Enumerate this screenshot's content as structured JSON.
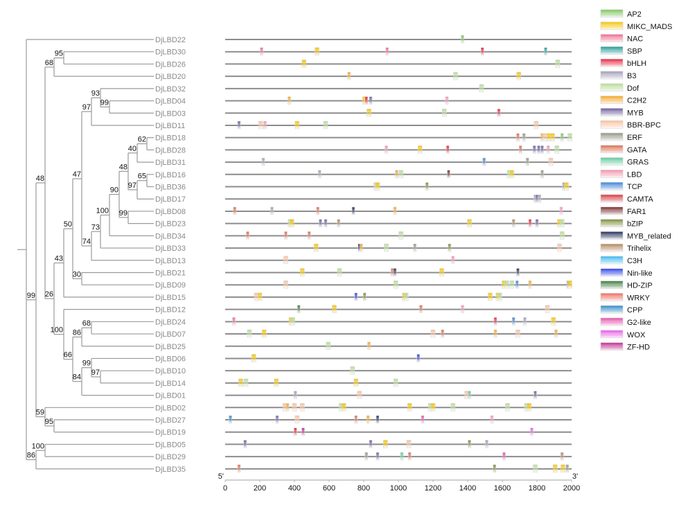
{
  "colors": {
    "AP2": "#7cc35a",
    "MIKC_MADS": "#f5c400",
    "NAC": "#f0698a",
    "SBP": "#1e9a96",
    "bHLH": "#e8203a",
    "B3": "#a09ab8",
    "Dof": "#b6dc94",
    "C2H2": "#f5a623",
    "MYB": "#6b5a9e",
    "BBR-BPC": "#f9c09a",
    "ERF": "#8e9480",
    "GATA": "#dc6a4a",
    "GRAS": "#5cc99a",
    "LBD": "#f490ac",
    "TCP": "#3a7fd6",
    "CAMTA": "#d8343a",
    "FAR1": "#7a2a2a",
    "bZIP": "#7a8c34",
    "MYB_related": "#1e2a54",
    "Trihelix": "#b08458",
    "C3H": "#34b8f0",
    "Nin-like": "#2a3ee8",
    "HD-ZIP": "#3a7a3a",
    "WRKY": "#f06a5a",
    "CPP": "#2a88c8",
    "G2-like": "#e84aaa",
    "WOX": "#e65ae8",
    "ZF-HD": "#c02890"
  },
  "legend": [
    "AP2",
    "MIKC_MADS",
    "NAC",
    "SBP",
    "bHLH",
    "B3",
    "Dof",
    "C2H2",
    "MYB",
    "BBR-BPC",
    "ERF",
    "GATA",
    "GRAS",
    "LBD",
    "TCP",
    "CAMTA",
    "FAR1",
    "bZIP",
    "MYB_related",
    "Trihelix",
    "C3H",
    "Nin-like",
    "HD-ZIP",
    "WRKY",
    "CPP",
    "G2-like",
    "WOX",
    "ZF-HD"
  ],
  "axis": {
    "start_label": "5'",
    "end_label": "3'",
    "min": 0,
    "max": 2000,
    "ticks": [
      "0",
      "200",
      "400",
      "600",
      "800",
      "1000",
      "1200",
      "1400",
      "1600",
      "1800",
      "2000"
    ]
  },
  "genes": [
    {
      "name": "DjLBD22",
      "sites": [
        [
          "AP2",
          1370
        ]
      ]
    },
    {
      "name": "DjLBD30",
      "sites": [
        [
          "NAC",
          210
        ],
        [
          "MIKC_MADS",
          530
        ],
        [
          "NAC",
          935
        ],
        [
          "bHLH",
          1485
        ],
        [
          "SBP",
          1850
        ]
      ]
    },
    {
      "name": "DjLBD26",
      "sites": [
        [
          "MIKC_MADS",
          455
        ],
        [
          "Dof",
          1920
        ]
      ]
    },
    {
      "name": "DjLBD20",
      "sites": [
        [
          "C2H2",
          715
        ],
        [
          "Dof",
          1330
        ],
        [
          "MIKC_MADS",
          1695
        ]
      ]
    },
    {
      "name": "DjLBD32",
      "sites": [
        [
          "Dof",
          1480
        ]
      ]
    },
    {
      "name": "DjLBD04",
      "sites": [
        [
          "C2H2",
          370
        ],
        [
          "MIKC_MADS",
          805
        ],
        [
          "bHLH",
          815
        ],
        [
          "MYB",
          840
        ],
        [
          "LBD",
          1280
        ]
      ]
    },
    {
      "name": "DjLBD03",
      "sites": [
        [
          "MIKC_MADS",
          830
        ],
        [
          "Dof",
          1265
        ],
        [
          "bHLH",
          1580
        ]
      ]
    },
    {
      "name": "DjLBD11",
      "sites": [
        [
          "MYB",
          80
        ],
        [
          "BBR-BPC",
          205
        ],
        [
          "LBD",
          230
        ],
        [
          "MIKC_MADS",
          415
        ],
        [
          "Dof",
          580
        ],
        [
          "BBR-BPC",
          1795
        ]
      ]
    },
    {
      "name": "DjLBD18",
      "sites": [
        [
          "GATA",
          1690
        ],
        [
          "ERF",
          1725
        ],
        [
          "C2H2",
          1830
        ],
        [
          "BBR-BPC",
          1845
        ],
        [
          "MIKC_MADS",
          1870
        ],
        [
          "MIKC_MADS",
          1890
        ],
        [
          "AP2",
          1945
        ],
        [
          "Dof",
          1990
        ]
      ]
    },
    {
      "name": "DjLBD28",
      "sites": [
        [
          "LBD",
          930
        ],
        [
          "MIKC_MADS",
          1125
        ],
        [
          "bHLH",
          1285
        ],
        [
          "GATA",
          1705
        ],
        [
          "MYB",
          1785
        ],
        [
          "MYB",
          1810
        ],
        [
          "MYB",
          1830
        ],
        [
          "LBD",
          1865
        ],
        [
          "Dof",
          1915
        ]
      ]
    },
    {
      "name": "DjLBD31",
      "sites": [
        [
          "B3",
          220
        ],
        [
          "TCP",
          1495
        ],
        [
          "ERF",
          1745
        ],
        [
          "BBR-BPC",
          1880
        ]
      ]
    },
    {
      "name": "DjLBD16",
      "sites": [
        [
          "B3",
          545
        ],
        [
          "C2H2",
          990
        ],
        [
          "Dof",
          1015
        ],
        [
          "FAR1",
          1290
        ],
        [
          "Dof",
          1640
        ],
        [
          "MIKC_MADS",
          1655
        ],
        [
          "ERF",
          1830
        ]
      ]
    },
    {
      "name": "DjLBD36",
      "sites": [
        [
          "Dof",
          870
        ],
        [
          "MIKC_MADS",
          880
        ],
        [
          "bZIP",
          1165
        ],
        [
          "B3",
          1955
        ],
        [
          "MIKC_MADS",
          1970
        ]
      ]
    },
    {
      "name": "DjLBD17",
      "sites": [
        [
          "B3",
          1790
        ],
        [
          "MYB",
          1800
        ],
        [
          "B3",
          1815
        ]
      ]
    },
    {
      "name": "DjLBD08",
      "sites": [
        [
          "GATA",
          55
        ],
        [
          "B3",
          270
        ],
        [
          "GATA",
          535
        ],
        [
          "MYB_related",
          740
        ],
        [
          "C2H2",
          980
        ],
        [
          "LBD",
          1940
        ]
      ]
    },
    {
      "name": "DjLBD23",
      "sites": [
        [
          "Dof",
          375
        ],
        [
          "MIKC_MADS",
          385
        ],
        [
          "MYB",
          550
        ],
        [
          "MYB",
          580
        ],
        [
          "Trihelix",
          655
        ],
        [
          "MIKC_MADS",
          1410
        ],
        [
          "Trihelix",
          1665
        ],
        [
          "bHLH",
          1760
        ],
        [
          "MYB",
          1800
        ],
        [
          "MIKC_MADS",
          1930
        ],
        [
          "Dof",
          1945
        ]
      ]
    },
    {
      "name": "DjLBD34",
      "sites": [
        [
          "GATA",
          130
        ],
        [
          "GATA",
          350
        ],
        [
          "GATA",
          485
        ],
        [
          "Dof",
          1015
        ],
        [
          "Dof",
          1945
        ]
      ]
    },
    {
      "name": "DjLBD33",
      "sites": [
        [
          "MIKC_MADS",
          525
        ],
        [
          "MYB_related",
          775
        ],
        [
          "C2H2",
          785
        ],
        [
          "Dof",
          930
        ],
        [
          "ERF",
          1095
        ],
        [
          "bZIP",
          1295
        ],
        [
          "BBR-BPC",
          1930
        ]
      ]
    },
    {
      "name": "DjLBD13",
      "sites": [
        [
          "BBR-BPC",
          350
        ],
        [
          "LBD",
          1315
        ]
      ]
    },
    {
      "name": "DjLBD21",
      "sites": [
        [
          "MIKC_MADS",
          445
        ],
        [
          "Dof",
          660
        ],
        [
          "GATA",
          965
        ],
        [
          "MYB_related",
          980
        ],
        [
          "MIKC_MADS",
          1250
        ],
        [
          "MYB_related",
          1690
        ]
      ]
    },
    {
      "name": "DjLBD09",
      "sites": [
        [
          "BBR-BPC",
          350
        ],
        [
          "Dof",
          985
        ],
        [
          "MIKC_MADS",
          1610
        ],
        [
          "Dof",
          1625
        ],
        [
          "Dof",
          1655
        ],
        [
          "TCP",
          1685
        ],
        [
          "C2H2",
          1760
        ],
        [
          "ERF",
          1980
        ],
        [
          "MIKC_MADS",
          1990
        ]
      ]
    },
    {
      "name": "DjLBD15",
      "sites": [
        [
          "BBR-BPC",
          180
        ],
        [
          "MIKC_MADS",
          200
        ],
        [
          "Nin-like",
          755
        ],
        [
          "bZIP",
          805
        ],
        [
          "MIKC_MADS",
          1035
        ],
        [
          "Dof",
          1045
        ],
        [
          "MIKC_MADS",
          1530
        ],
        [
          "MIKC_MADS",
          1575
        ],
        [
          "Dof",
          1585
        ]
      ]
    },
    {
      "name": "DjLBD12",
      "sites": [
        [
          "HD-ZIP",
          425
        ],
        [
          "MIKC_MADS",
          630
        ],
        [
          "GATA",
          1130
        ],
        [
          "LBD",
          1370
        ],
        [
          "BBR-BPC",
          1860
        ]
      ]
    },
    {
      "name": "DjLBD24",
      "sites": [
        [
          "NAC",
          50
        ],
        [
          "MIKC_MADS",
          380
        ],
        [
          "Dof",
          390
        ],
        [
          "bHLH",
          1560
        ],
        [
          "TCP",
          1665
        ],
        [
          "B3",
          1730
        ],
        [
          "MIKC_MADS",
          1895
        ]
      ]
    },
    {
      "name": "DjLBD07",
      "sites": [
        [
          "Dof",
          140
        ],
        [
          "MIKC_MADS",
          225
        ],
        [
          "BBR-BPC",
          1200
        ],
        [
          "GATA",
          1255
        ],
        [
          "C2H2",
          1560
        ],
        [
          "BBR-BPC",
          1690
        ],
        [
          "C2H2",
          1910
        ]
      ]
    },
    {
      "name": "DjLBD25",
      "sites": [
        [
          "Dof",
          595
        ],
        [
          "C2H2",
          830
        ]
      ]
    },
    {
      "name": "DjLBD06",
      "sites": [
        [
          "MIKC_MADS",
          165
        ],
        [
          "Nin-like",
          1115
        ]
      ]
    },
    {
      "name": "DjLBD10",
      "sites": [
        [
          "Dof",
          735
        ]
      ]
    },
    {
      "name": "DjLBD14",
      "sites": [
        [
          "MIKC_MADS",
          90
        ],
        [
          "Dof",
          120
        ],
        [
          "MIKC_MADS",
          295
        ],
        [
          "MIKC_MADS",
          755
        ],
        [
          "Dof",
          985
        ]
      ]
    },
    {
      "name": "DjLBD01",
      "sites": [
        [
          "B3",
          405
        ],
        [
          "BBR-BPC",
          775
        ],
        [
          "BBR-BPC",
          1395
        ],
        [
          "GRAS",
          1410
        ],
        [
          "MYB",
          1790
        ]
      ]
    },
    {
      "name": "DjLBD02",
      "sites": [
        [
          "BBR-BPC",
          345
        ],
        [
          "C2H2",
          360
        ],
        [
          "BBR-BPC",
          400
        ],
        [
          "BBR-BPC",
          445
        ],
        [
          "Dof",
          670
        ],
        [
          "MIKC_MADS",
          685
        ],
        [
          "MIKC_MADS",
          1065
        ],
        [
          "Dof",
          1185
        ],
        [
          "MIKC_MADS",
          1200
        ],
        [
          "Dof",
          1315
        ],
        [
          "Dof",
          1630
        ],
        [
          "Dof",
          1740
        ],
        [
          "MIKC_MADS",
          1755
        ]
      ]
    },
    {
      "name": "DjLBD27",
      "sites": [
        [
          "CPP",
          30
        ],
        [
          "MYB",
          300
        ],
        [
          "BBR-BPC",
          415
        ],
        [
          "GATA",
          755
        ],
        [
          "C2H2",
          825
        ],
        [
          "MYB_related",
          880
        ],
        [
          "G2-like",
          1140
        ],
        [
          "LBD",
          1540
        ]
      ]
    },
    {
      "name": "DjLBD19",
      "sites": [
        [
          "bHLH",
          405
        ],
        [
          "ZF-HD",
          450
        ],
        [
          "WOX",
          1770
        ]
      ]
    },
    {
      "name": "DjLBD05",
      "sites": [
        [
          "MYB",
          115
        ],
        [
          "MYB",
          840
        ],
        [
          "MIKC_MADS",
          925
        ],
        [
          "BBR-BPC",
          1060
        ],
        [
          "bZIP",
          1410
        ],
        [
          "B3",
          1510
        ]
      ]
    },
    {
      "name": "DjLBD29",
      "sites": [
        [
          "ERF",
          815
        ],
        [
          "MYB",
          880
        ],
        [
          "GRAS",
          1020
        ],
        [
          "GATA",
          1065
        ],
        [
          "G2-like",
          1610
        ],
        [
          "Trihelix",
          1945
        ]
      ]
    },
    {
      "name": "DjLBD35",
      "sites": [
        [
          "GATA",
          80
        ],
        [
          "bZIP",
          1555
        ],
        [
          "Dof",
          1790
        ],
        [
          "MIKC_MADS",
          1905
        ],
        [
          "MIKC_MADS",
          1950
        ],
        [
          "ERF",
          1975
        ]
      ]
    }
  ],
  "bootstrap": [
    "95",
    "68",
    "93",
    "99",
    "97",
    "62",
    "40",
    "48",
    "65",
    "97",
    "90",
    "99",
    "100",
    "73",
    "74",
    "47",
    "30",
    "50",
    "43",
    "26",
    "48",
    "68",
    "86",
    "100",
    "99",
    "97",
    "84",
    "66",
    "59",
    "95",
    "99",
    "100",
    "86"
  ]
}
